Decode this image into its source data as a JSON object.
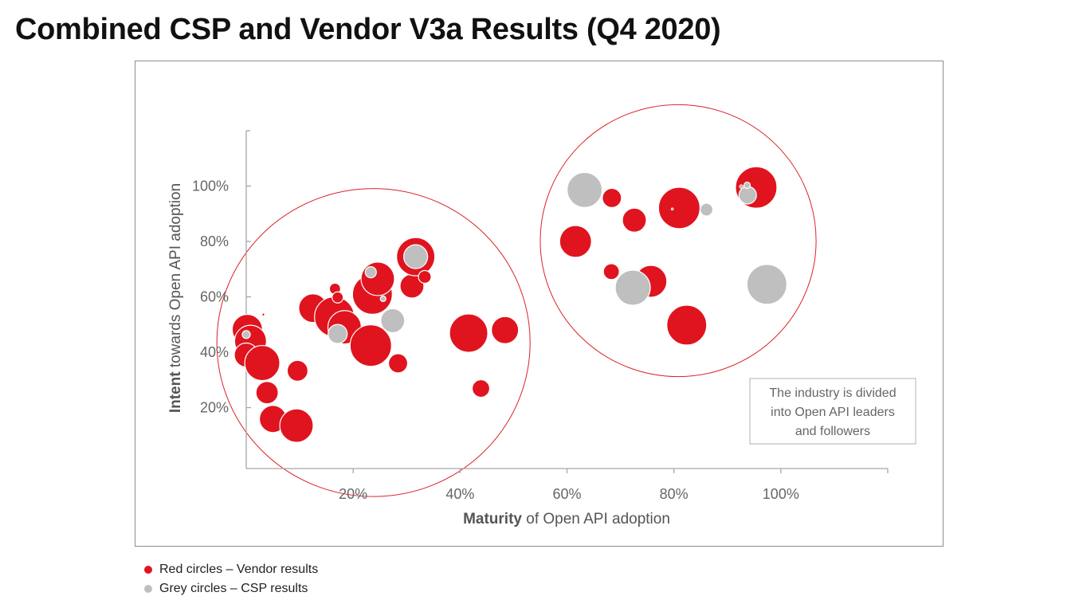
{
  "title": "Combined CSP and Vendor V3a Results (Q4 2020)",
  "legend": [
    {
      "text": "Red circles – Vendor results",
      "color": "#e0141e"
    },
    {
      "text": "Grey circles – CSP results",
      "color": "#bfbfbf"
    }
  ],
  "colors": {
    "vendor": "#e0141e",
    "csp": "#bfbfbf",
    "ring": "#d9232a",
    "axis": "#a6a6a6"
  },
  "chart_data": {
    "type": "scatter",
    "title": "Combined CSP and Vendor V3a Results (Q4 2020)",
    "xlabel_bold": "Maturity",
    "xlabel_rest": " of Open API adoption",
    "ylabel_bold": "Intent",
    "ylabel_rest": " towards Open API adoption",
    "xlim": [
      0,
      120
    ],
    "ylim": [
      -2,
      120
    ],
    "x_ticks": [
      "20%",
      "40%",
      "60%",
      "80%",
      "100%"
    ],
    "x_tick_values": [
      20,
      40,
      60,
      80,
      100
    ],
    "y_ticks": [
      "20%",
      "40%",
      "60%",
      "80%",
      "100%"
    ],
    "y_tick_values": [
      20,
      40,
      60,
      80,
      100
    ],
    "annotation": "The industry is divided into Open API leaders and followers",
    "annotation_lines": [
      "The industry is divided",
      "into Open API leaders",
      "and followers"
    ],
    "series": [
      {
        "name": "Vendor results",
        "color": "#e0141e",
        "points": [
          {
            "x": 0.2,
            "y": 48.2,
            "size": 19
          },
          {
            "x": 0.8,
            "y": 44.0,
            "size": 20
          },
          {
            "x": 0.0,
            "y": 39.0,
            "size": 15
          },
          {
            "x": 3.2,
            "y": 53.6,
            "size": 1.5
          },
          {
            "x": 3.0,
            "y": 36.1,
            "size": 22
          },
          {
            "x": 9.6,
            "y": 33.3,
            "size": 13
          },
          {
            "x": 3.9,
            "y": 25.4,
            "size": 14
          },
          {
            "x": 5.0,
            "y": 15.9,
            "size": 17
          },
          {
            "x": 9.4,
            "y": 13.5,
            "size": 21
          },
          {
            "x": 12.5,
            "y": 55.9,
            "size": 18
          },
          {
            "x": 16.5,
            "y": 52.8,
            "size": 25
          },
          {
            "x": 18.4,
            "y": 49.0,
            "size": 21
          },
          {
            "x": 16.6,
            "y": 62.9,
            "size": 7
          },
          {
            "x": 17.1,
            "y": 59.8,
            "size": 7
          },
          {
            "x": 23.3,
            "y": 42.4,
            "size": 26
          },
          {
            "x": 23.6,
            "y": 60.9,
            "size": 25
          },
          {
            "x": 24.6,
            "y": 66.5,
            "size": 21
          },
          {
            "x": 28.4,
            "y": 36.0,
            "size": 12
          },
          {
            "x": 31.0,
            "y": 63.9,
            "size": 15
          },
          {
            "x": 31.7,
            "y": 74.5,
            "size": 24
          },
          {
            "x": 33.4,
            "y": 67.2,
            "size": 8
          },
          {
            "x": 41.6,
            "y": 46.9,
            "size": 24
          },
          {
            "x": 48.4,
            "y": 48.0,
            "size": 17
          },
          {
            "x": 43.9,
            "y": 26.9,
            "size": 11
          },
          {
            "x": 61.6,
            "y": 80.0,
            "size": 20
          },
          {
            "x": 68.4,
            "y": 95.7,
            "size": 12
          },
          {
            "x": 72.6,
            "y": 87.7,
            "size": 15
          },
          {
            "x": 68.3,
            "y": 69.1,
            "size": 10
          },
          {
            "x": 75.7,
            "y": 65.6,
            "size": 20
          },
          {
            "x": 82.4,
            "y": 49.8,
            "size": 25
          },
          {
            "x": 81.0,
            "y": 92.1,
            "size": 26
          },
          {
            "x": 95.4,
            "y": 99.5,
            "size": 26
          }
        ]
      },
      {
        "name": "CSP results",
        "color": "#bfbfbf",
        "points": [
          {
            "x": 0.0,
            "y": 46.4,
            "size": 5
          },
          {
            "x": 23.3,
            "y": 68.9,
            "size": 7
          },
          {
            "x": 25.6,
            "y": 59.3,
            "size": 3.5
          },
          {
            "x": 27.4,
            "y": 51.4,
            "size": 15
          },
          {
            "x": 17.1,
            "y": 46.6,
            "size": 12
          },
          {
            "x": 31.7,
            "y": 74.5,
            "size": 15
          },
          {
            "x": 63.3,
            "y": 98.6,
            "size": 22
          },
          {
            "x": 72.3,
            "y": 63.3,
            "size": 22
          },
          {
            "x": 97.4,
            "y": 64.5,
            "size": 25
          },
          {
            "x": 86.1,
            "y": 91.5,
            "size": 8
          },
          {
            "x": 93.8,
            "y": 96.7,
            "size": 11
          },
          {
            "x": 92.6,
            "y": 99.8,
            "size": 2.5
          },
          {
            "x": 93.7,
            "y": 100.3,
            "size": 4
          },
          {
            "x": 79.7,
            "y": 91.7,
            "size": 1.5
          }
        ]
      }
    ],
    "groups": [
      {
        "center_x": 23.8,
        "center_y": 43.5,
        "radius_x": 29.3,
        "radius_y": 55.6
      },
      {
        "center_x": 80.8,
        "center_y": 80.3,
        "radius_x": 25.8,
        "radius_y": 49.1
      }
    ],
    "grid": false,
    "legend_placement": "bottom-left, below chart"
  }
}
